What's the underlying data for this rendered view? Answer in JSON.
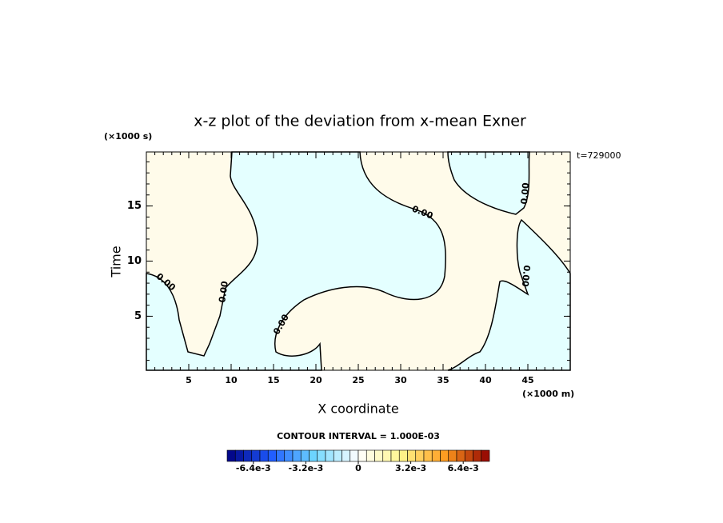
{
  "chart_data": {
    "type": "contour",
    "title": "x-z plot of the deviation from x-mean Exner",
    "x_label": "X coordinate",
    "y_label": "Time",
    "x_unit": "(×1000 m)",
    "y_unit": "(×1000 s)",
    "time_label": "t=729000",
    "xlim": [
      0,
      50
    ],
    "xticks": [
      5,
      10,
      15,
      20,
      25,
      30,
      35,
      40,
      45
    ],
    "ylim": [
      0.1,
      19.9
    ],
    "yticks": [
      5,
      10,
      15
    ],
    "contour_levels": [
      {
        "value": 0,
        "label": "0.00"
      }
    ],
    "region_colors": {
      "negative": "#e4ffff",
      "positive": "#fffbea"
    },
    "colorbar": {
      "title": "CONTOUR INTERVAL = 1.000E-03",
      "lim": [
        -0.008,
        0.008
      ],
      "ticks": [
        {
          "value": -0.0064,
          "label": "-6.4e-3"
        },
        {
          "value": -0.0032,
          "label": "-3.2e-3"
        },
        0,
        {
          "value": 0.0032,
          "label": "3.2e-3"
        },
        {
          "value": 0.0064,
          "label": "6.4e-3"
        }
      ],
      "colors": [
        "#00007f",
        "#1e5aff",
        "#6fd8ff",
        "#ffffff",
        "#fff48a",
        "#ff9a1e",
        "#8f0000"
      ]
    }
  }
}
